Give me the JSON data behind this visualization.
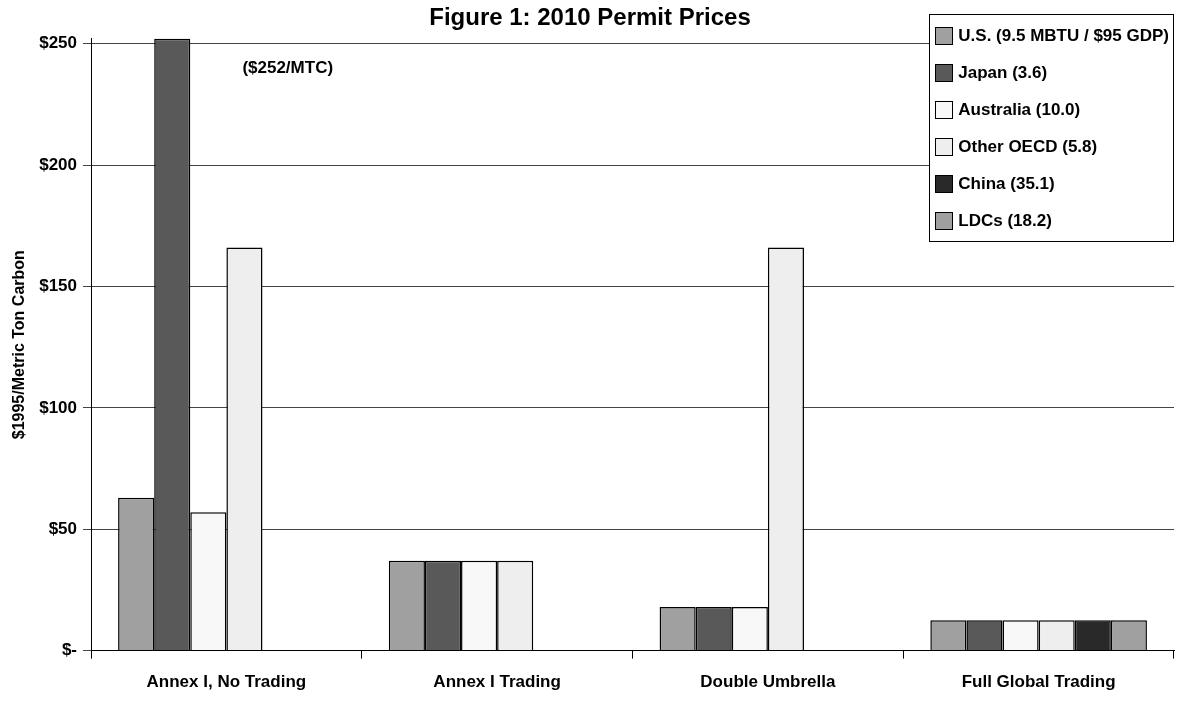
{
  "chart_data": {
    "type": "bar",
    "title": "Figure 1: 2010 Permit Prices",
    "ylabel": "$1995/Metric Ton Carbon",
    "categories": [
      "Annex I, No Trading",
      "Annex I Trading",
      "Double Umbrella",
      "Full Global Trading"
    ],
    "series": [
      {
        "name": "U.S. (9.5 MBTU / $95 GDP)",
        "color": "#a0a0a0",
        "values": [
          63,
          37,
          18,
          12.5
        ]
      },
      {
        "name": "Japan (3.6)",
        "color": "#595959",
        "values": [
          252,
          37,
          18,
          12.5
        ]
      },
      {
        "name": "Australia (10.0)",
        "color": "#f8f8f8",
        "values": [
          57,
          37,
          18,
          12.5
        ]
      },
      {
        "name": "Other OECD (5.8)",
        "color": "#eeeeee",
        "values": [
          166,
          37,
          166,
          12.5
        ]
      },
      {
        "name": "China (35.1)",
        "color": "#292929",
        "values": [
          null,
          null,
          null,
          12.5
        ]
      },
      {
        "name": "LDCs (18.2)",
        "color": "#a0a0a0",
        "values": [
          null,
          null,
          null,
          12.5
        ]
      }
    ],
    "ylim": [
      0,
      252
    ],
    "yticks": [
      {
        "value": 0,
        "label": "$-"
      },
      {
        "value": 50,
        "label": "$50"
      },
      {
        "value": 100,
        "label": "$100"
      },
      {
        "value": 150,
        "label": "$150"
      },
      {
        "value": 200,
        "label": "$200"
      },
      {
        "value": 250,
        "label": "$250"
      }
    ],
    "grid": "y",
    "legend": "top right",
    "annotations": [
      "($252/MTC)"
    ]
  }
}
